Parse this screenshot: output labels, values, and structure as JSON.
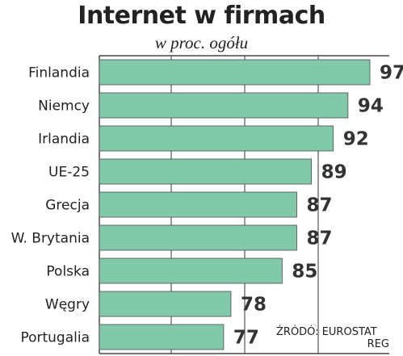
{
  "chart_data": {
    "type": "bar",
    "orientation": "horizontal",
    "title": "Internet w firmach",
    "subtitle": "w proc. ogółu",
    "categories": [
      "Finlandia",
      "Niemcy",
      "Irlandia",
      "UE-25",
      "Grecja",
      "W. Brytania",
      "Polska",
      "Węgry",
      "Portugalia"
    ],
    "values": [
      97,
      94,
      92,
      89,
      87,
      87,
      85,
      78,
      77
    ],
    "xlim": [
      60,
      97
    ],
    "grid": true,
    "bar_color": "#82c9aa",
    "source": [
      "ŹRÓDÓ: EUROSTAT",
      "REG"
    ]
  }
}
